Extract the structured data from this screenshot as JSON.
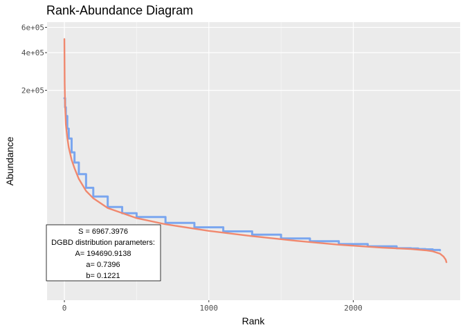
{
  "chart_data": {
    "type": "line",
    "title": "Rank-Abundance Diagram",
    "xlabel": "Rank",
    "ylabel": "Abundance",
    "xlim": [
      -120,
      2740
    ],
    "ylim": [
      0,
      600000
    ],
    "x_ticks": [
      0,
      1000,
      2000
    ],
    "x_tick_labels": [
      "0",
      "1000",
      "2000"
    ],
    "y_ticks": [
      200000,
      400000,
      600000
    ],
    "y_tick_labels": [
      "2e+05",
      "4e+05",
      "6e+05"
    ],
    "grid": true,
    "legend": "none",
    "series": [
      {
        "color": "#7aa6ef",
        "style": "step",
        "x": [
          0,
          5,
          10,
          20,
          30,
          50,
          70,
          100,
          150,
          200,
          300,
          400,
          500,
          700,
          900,
          1100,
          1300,
          1500,
          1700,
          1900,
          2100,
          2300,
          2400,
          2450,
          2500,
          2550,
          2600
        ],
        "y": [
          170000,
          140000,
          115000,
          85000,
          66000,
          45000,
          33000,
          22500,
          13600,
          9500,
          5900,
          4300,
          3500,
          2500,
          1900,
          1450,
          1150,
          860,
          690,
          540,
          440,
          370,
          360,
          340,
          330,
          310,
          300
        ]
      },
      {
        "color": "#f0886e",
        "style": "line",
        "x": [
          0,
          2,
          5,
          10,
          20,
          30,
          50,
          70,
          100,
          150,
          200,
          300,
          500,
          700,
          1000,
          1300,
          1600,
          1900,
          2200,
          2400,
          2500,
          2550,
          2600,
          2625,
          2640,
          2645
        ],
        "y": [
          500000,
          230000,
          145000,
          95000,
          68000,
          52000,
          36000,
          27500,
          19000,
          12000,
          8800,
          5600,
          3300,
          2300,
          1500,
          1030,
          720,
          510,
          390,
          340,
          300,
          270,
          210,
          150,
          100,
          70
        ]
      }
    ],
    "annotation": {
      "lines": [
        "S = 6967.3976",
        "DGBD distribution parameters:",
        "A= 194690.9138",
        "a= 0.7396",
        "b= 0.1221"
      ]
    }
  }
}
